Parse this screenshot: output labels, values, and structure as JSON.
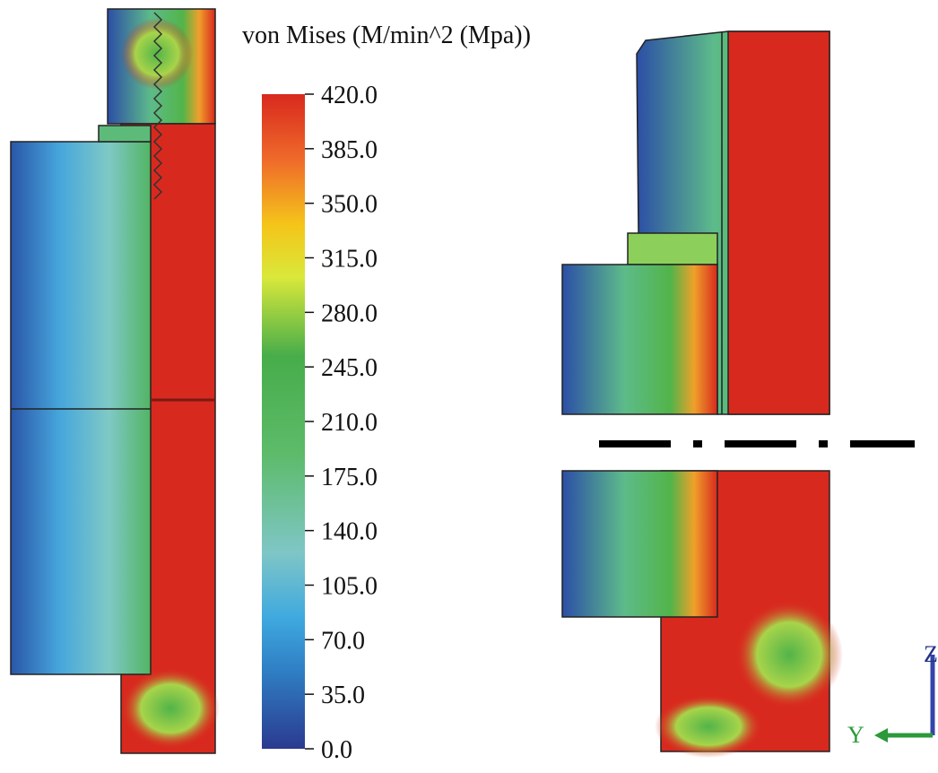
{
  "legend": {
    "title": "von Mises (M/min^2 (Mpa))",
    "range": [
      0,
      420
    ],
    "ticks": [
      {
        "value": 420,
        "label": "420.0"
      },
      {
        "value": 385,
        "label": "385.0"
      },
      {
        "value": 350,
        "label": "350.0"
      },
      {
        "value": 315,
        "label": "315.0"
      },
      {
        "value": 280,
        "label": "280.0"
      },
      {
        "value": 245,
        "label": "245.0"
      },
      {
        "value": 210,
        "label": "210.0"
      },
      {
        "value": 175,
        "label": "175.0"
      },
      {
        "value": 140,
        "label": "140.0"
      },
      {
        "value": 105,
        "label": "105.0"
      },
      {
        "value": 70,
        "label": "70.0"
      },
      {
        "value": 35,
        "label": "35.0"
      },
      {
        "value": 0,
        "label": "0.0"
      }
    ]
  },
  "axes_triad": {
    "y": "Y",
    "z": "Z"
  }
}
